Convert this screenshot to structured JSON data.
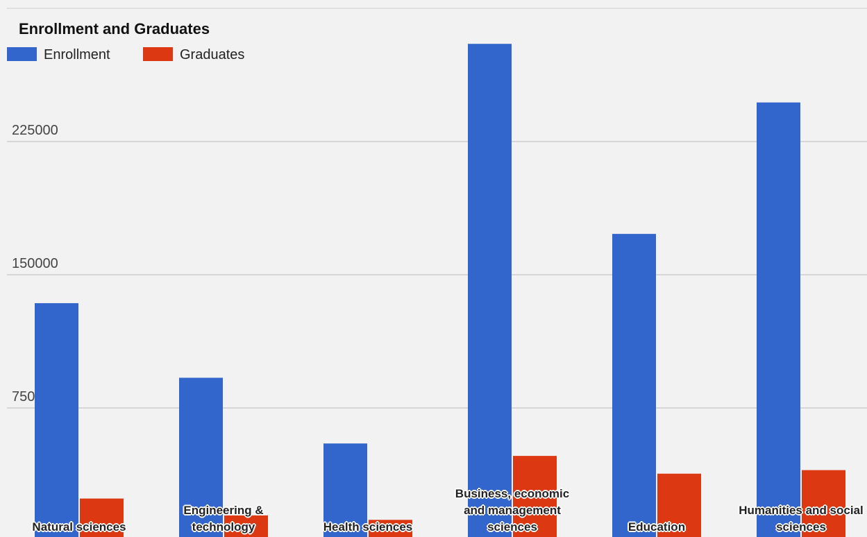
{
  "chart_data": {
    "type": "bar",
    "title": "Enrollment and Graduates",
    "categories": [
      "Natural sciences",
      "Engineering & technology",
      "Health sciences",
      "Business, economic and management sciences",
      "Education",
      "Humanities and social sciences"
    ],
    "series": [
      {
        "name": "Enrollment",
        "color": "#3366cc",
        "values": [
          134000,
          92000,
          55000,
          280000,
          173000,
          247000
        ]
      },
      {
        "name": "Graduates",
        "color": "#dc3912",
        "values": [
          24000,
          14500,
          12000,
          48000,
          38000,
          40000
        ]
      }
    ],
    "ylim": [
      0,
      300000
    ],
    "yticks": [
      75000,
      150000,
      225000
    ],
    "grid": true
  }
}
